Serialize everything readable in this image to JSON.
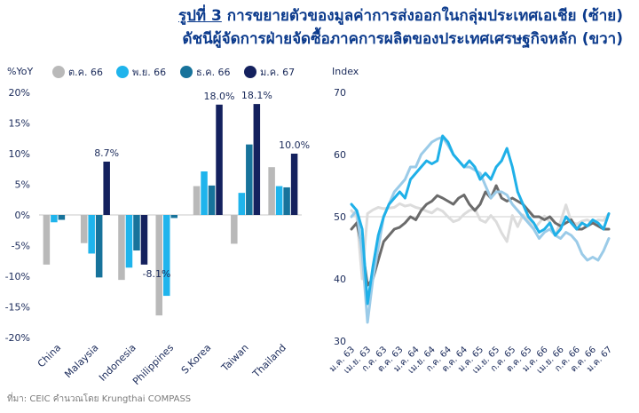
{
  "header": {
    "fig_label": "รูปที่ 3",
    "title_line1": "การขยายตัวของมูลค่าการส่งออกในกลุ่มประเทศเอเชีย (ซ้าย)",
    "title_line2": "ดัชนีผู้จัดการฝ่ายจัดซื้อภาคการผลิตของประเทศเศรษฐกิจหลัก (ขวา)"
  },
  "source": "ที่มา: CEIC คำนวณโดย Krungthai COMPASS",
  "chart_data": [
    {
      "type": "bar",
      "ylabel": "%YoY",
      "ylim": [
        -20,
        20
      ],
      "yticks": [
        -20,
        -15,
        -10,
        -5,
        0,
        5,
        10,
        15,
        20
      ],
      "ytick_labels": [
        "-20%",
        "-15%",
        "-10%",
        "-5%",
        "0%",
        "5%",
        "10%",
        "15%",
        "20%"
      ],
      "categories": [
        "China",
        "Malaysia",
        "Indonesia",
        "Philippines",
        "S.Korea",
        "Taiwan",
        "Thailand"
      ],
      "series": [
        {
          "name": "ต.ค. 66",
          "color": "#b9b9b9",
          "values": [
            -8.1,
            -4.6,
            -10.6,
            -16.4,
            4.7,
            -4.7,
            7.8
          ]
        },
        {
          "name": "พ.ย. 66",
          "color": "#1fb4ec",
          "values": [
            -1.2,
            -6.3,
            -8.6,
            -13.2,
            7.1,
            3.6,
            4.7
          ]
        },
        {
          "name": "ธ.ค. 66",
          "color": "#17739b",
          "values": [
            -0.8,
            -10.2,
            -5.8,
            -0.5,
            4.8,
            11.5,
            4.5
          ]
        },
        {
          "name": "ม.ค. 67",
          "color": "#14215e",
          "values": [
            0,
            8.7,
            -8.1,
            0,
            18.0,
            18.1,
            10.0
          ]
        }
      ],
      "data_labels": [
        {
          "category": "Malaysia",
          "series": "ม.ค. 67",
          "text": "8.7%"
        },
        {
          "category": "Indonesia",
          "series": "ม.ค. 67",
          "text": "-8.1%"
        },
        {
          "category": "S.Korea",
          "series": "ม.ค. 67",
          "text": "18.0%"
        },
        {
          "category": "Taiwan",
          "series": "ม.ค. 67",
          "text": "18.1%"
        },
        {
          "category": "Thailand",
          "series": "ม.ค. 67",
          "text": "10.0%"
        }
      ],
      "legend_position": "top",
      "grid": false
    },
    {
      "type": "line",
      "ylabel": "Index",
      "ylim": [
        30,
        70
      ],
      "yticks": [
        30,
        40,
        50,
        60,
        70
      ],
      "reference_line": 50,
      "x_tick_labels": [
        "ม.ค. 63",
        "เม.ย. 63",
        "ก.ค. 63",
        "ต.ค. 63",
        "ม.ค. 64",
        "เม.ย. 64",
        "ก.ค. 64",
        "ต.ค. 64",
        "ม.ค. 65",
        "เม.ย. 65",
        "ก.ค. 65",
        "ต.ค. 65",
        "ม.ค. 66",
        "เม.ย. 66",
        "ก.ค. 66",
        "ต.ค. 66",
        "ม.ค. 67"
      ],
      "series": [
        {
          "color": "#dcdcdc",
          "values": [
            51,
            50,
            40,
            50.5,
            51.1,
            51.5,
            51.3,
            51.4,
            51.5,
            52.1,
            51.7,
            51.9,
            51.5,
            51.3,
            50.9,
            50.6,
            51.3,
            50.9,
            50.0,
            49.2,
            49.5,
            50.4,
            51.0,
            51.3,
            49.5,
            49.1,
            50.2,
            49.2,
            47.4,
            46.0,
            50.2,
            48.4,
            50.3,
            49.5,
            48.0,
            49.0,
            50.1,
            49.2,
            47.0,
            49.2,
            51.9,
            49.2,
            48.8,
            49.3,
            49.5,
            49.0,
            49.5,
            49.4,
            50.5
          ]
        },
        {
          "color": "#6b6b6b",
          "values": [
            48,
            49,
            45,
            39,
            40,
            43,
            46,
            47,
            48,
            48.3,
            49,
            50,
            49.5,
            51,
            52,
            52.5,
            53.4,
            53,
            52.5,
            52,
            53,
            53.5,
            52,
            51,
            52,
            54,
            53,
            55,
            53,
            52.5,
            53,
            52.5,
            52,
            51,
            50,
            50,
            49.5,
            50,
            49,
            48.5,
            49,
            49.5,
            48,
            48,
            48.5,
            49,
            48.5,
            48,
            48
          ]
        },
        {
          "color": "#9bcbe8",
          "values": [
            50,
            51,
            44,
            33,
            40,
            45,
            50,
            52,
            54,
            55,
            56,
            58,
            58,
            60,
            61,
            62,
            62.5,
            62.8,
            61.5,
            60,
            59,
            58,
            58,
            57.5,
            57,
            55,
            53,
            54,
            54,
            53.5,
            52,
            51,
            50,
            49,
            48,
            46.5,
            47.5,
            48,
            47,
            46.5,
            47.5,
            47,
            46,
            44,
            43,
            43.5,
            43,
            44.5,
            46.5
          ]
        },
        {
          "color": "#1fb0e8",
          "values": [
            52,
            51,
            48,
            36,
            42,
            47,
            50,
            52,
            53,
            54,
            53,
            56,
            57,
            58,
            59,
            58.5,
            59,
            63,
            62,
            60,
            59,
            58,
            59,
            58,
            56,
            57,
            56,
            58,
            59,
            61,
            58,
            54,
            52,
            50,
            49,
            47.5,
            48,
            49,
            47,
            48,
            50,
            49,
            48,
            49,
            48.5,
            49.5,
            49,
            48,
            50.5
          ]
        }
      ],
      "grid": false
    }
  ]
}
